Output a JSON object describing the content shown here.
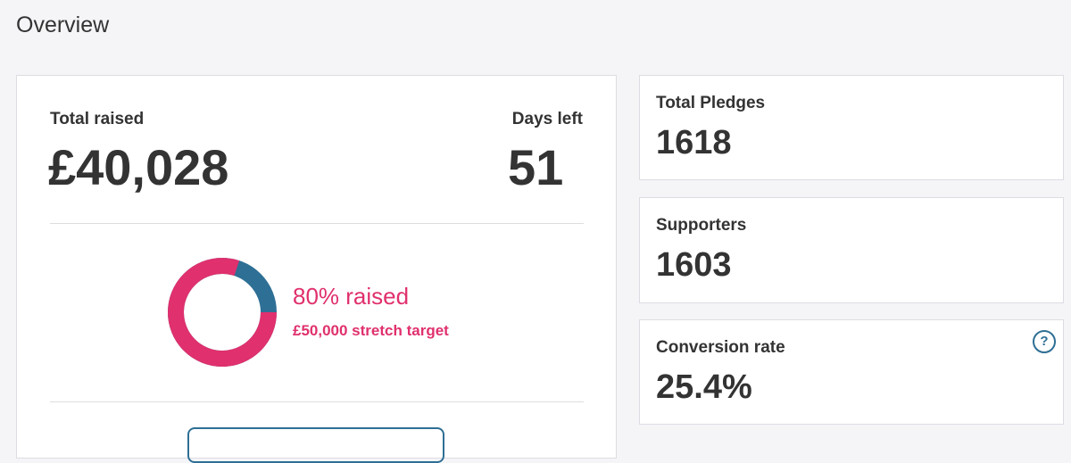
{
  "header": {
    "title": "Overview"
  },
  "overview": {
    "total_raised": {
      "label": "Total raised",
      "value": "£40,028"
    },
    "days_left": {
      "label": "Days left",
      "value": 51
    },
    "progress": {
      "value": 80,
      "label": "80% raised",
      "target": "£50,000 stretch target"
    }
  },
  "stats": [
    {
      "label": "Total Pledges",
      "value": 1618
    },
    {
      "label": "Supporters",
      "value": 1603
    },
    {
      "label": "Conversion rate",
      "value": "25.4%",
      "help": "?"
    }
  ]
}
